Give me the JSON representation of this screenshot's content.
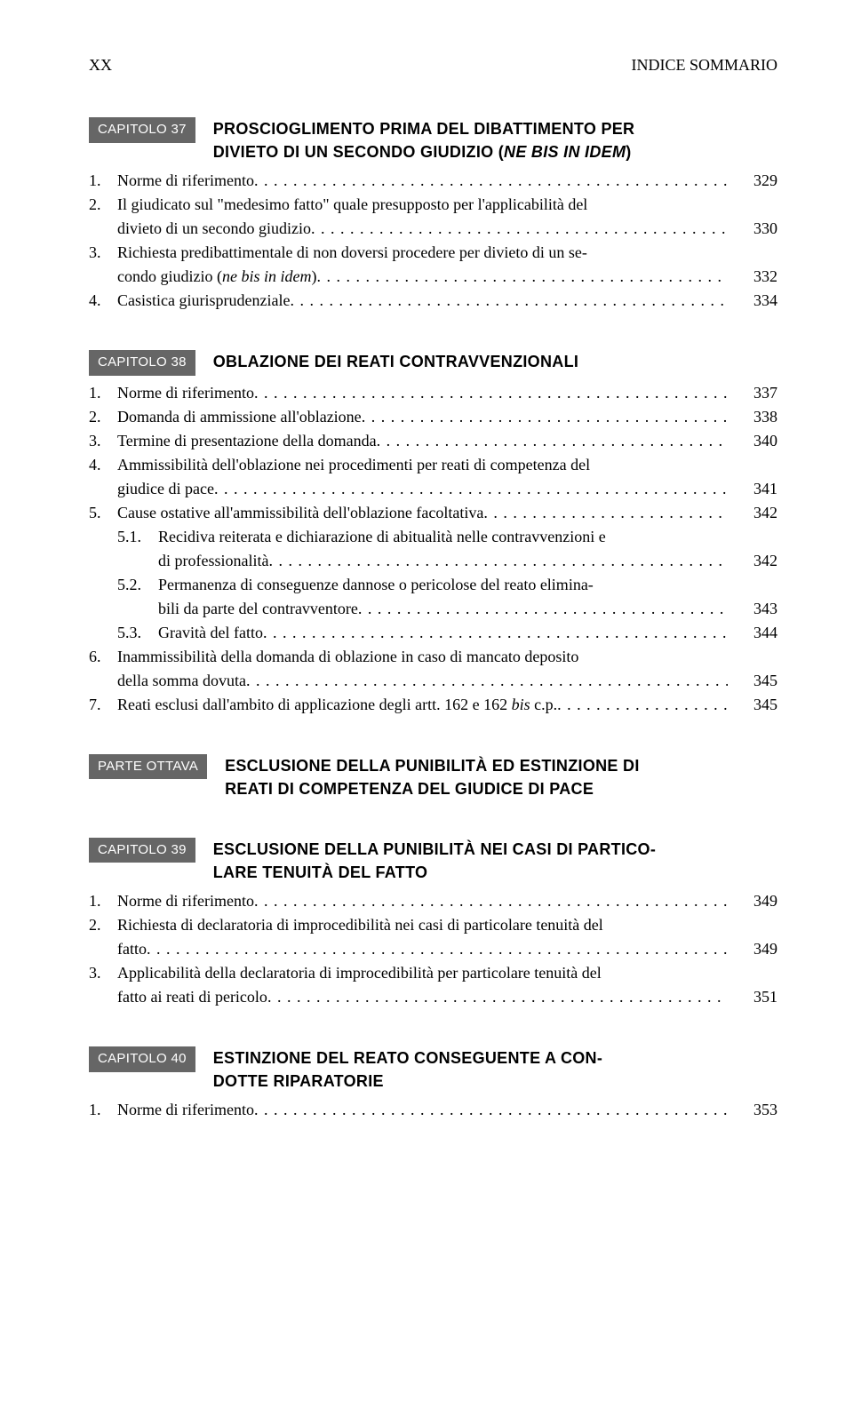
{
  "header": {
    "page_number": "XX",
    "running_head": "INDICE SOMMARIO"
  },
  "chapters": [
    {
      "badge": "CAPITOLO 37",
      "title_lines": [
        "PROSCIOGLIMENTO PRIMA DEL DIBATTIMENTO PER",
        "DIVIETO DI UN SECONDO GIUDIZIO (",
        ")"
      ],
      "title_italic": "NE BIS IN IDEM",
      "entries": [
        {
          "num": "1.",
          "lines": [
            "Norme di riferimento"
          ],
          "page": "329"
        },
        {
          "num": "2.",
          "lines": [
            "Il giudicato sul \"medesimo fatto\" quale presupposto per l'applicabilità del",
            "divieto di un secondo giudizio"
          ],
          "page": "330"
        },
        {
          "num": "3.",
          "lines": [
            "Richiesta predibattimentale di non doversi procedere per divieto di un se-",
            "condo giudizio (ne bis in idem)"
          ],
          "page": "332",
          "italic_inline": "ne bis in idem"
        },
        {
          "num": "4.",
          "lines": [
            "Casistica giurisprudenziale"
          ],
          "page": "334"
        }
      ]
    },
    {
      "badge": "CAPITOLO 38",
      "title_lines": [
        "OBLAZIONE DEI REATI CONTRAVVENZIONALI"
      ],
      "entries": [
        {
          "num": "1.",
          "lines": [
            "Norme di riferimento"
          ],
          "page": "337"
        },
        {
          "num": "2.",
          "lines": [
            "Domanda di ammissione all'oblazione"
          ],
          "page": "338"
        },
        {
          "num": "3.",
          "lines": [
            "Termine di presentazione della domanda"
          ],
          "page": "340"
        },
        {
          "num": "4.",
          "lines": [
            "Ammissibilità dell'oblazione nei procedimenti per reati di competenza del",
            "giudice di pace"
          ],
          "page": "341"
        },
        {
          "num": "5.",
          "lines": [
            "Cause ostative all'ammissibilità dell'oblazione facoltativa"
          ],
          "page": "342"
        },
        {
          "num": "5.1.",
          "sub": true,
          "lines": [
            "Recidiva reiterata e dichiarazione di abitualità nelle contravvenzioni e",
            "di professionalità"
          ],
          "page": "342"
        },
        {
          "num": "5.2.",
          "sub": true,
          "lines": [
            "Permanenza di conseguenze dannose o pericolose del reato elimina-",
            "bili da parte del contravventore"
          ],
          "page": "343"
        },
        {
          "num": "5.3.",
          "sub": true,
          "lines": [
            "Gravità del fatto"
          ],
          "page": "344"
        },
        {
          "num": "6.",
          "lines": [
            "Inammissibilità della domanda di oblazione in caso di mancato deposito",
            "della somma dovuta"
          ],
          "page": "345"
        },
        {
          "num": "7.",
          "lines": [
            "Reati esclusi dall'ambito di applicazione degli artt. 162 e 162 bis c.p."
          ],
          "page": "345",
          "italic_inline": "bis"
        }
      ]
    },
    {
      "badge": "PARTE OTTAVA",
      "title_lines": [
        "ESCLUSIONE DELLA PUNIBILITÀ ED ESTINZIONE DI",
        "REATI DI COMPETENZA DEL GIUDICE DI PACE"
      ],
      "entries": []
    },
    {
      "badge": "CAPITOLO 39",
      "title_lines": [
        "ESCLUSIONE DELLA PUNIBILITÀ NEI CASI DI PARTICO-",
        "LARE TENUITÀ DEL FATTO"
      ],
      "entries": [
        {
          "num": "1.",
          "lines": [
            "Norme di riferimento"
          ],
          "page": "349"
        },
        {
          "num": "2.",
          "lines": [
            "Richiesta di declaratoria di improcedibilità nei casi di particolare tenuità del",
            "fatto"
          ],
          "page": "349"
        },
        {
          "num": "3.",
          "lines": [
            "Applicabilità della declaratoria di improcedibilità per particolare tenuità del",
            "fatto ai reati di pericolo"
          ],
          "page": "351"
        }
      ]
    },
    {
      "badge": "CAPITOLO 40",
      "title_lines": [
        "ESTINZIONE DEL REATO CONSEGUENTE A CON-",
        "DOTTE RIPARATORIE"
      ],
      "entries": [
        {
          "num": "1.",
          "lines": [
            "Norme di riferimento"
          ],
          "page": "353"
        }
      ]
    }
  ]
}
